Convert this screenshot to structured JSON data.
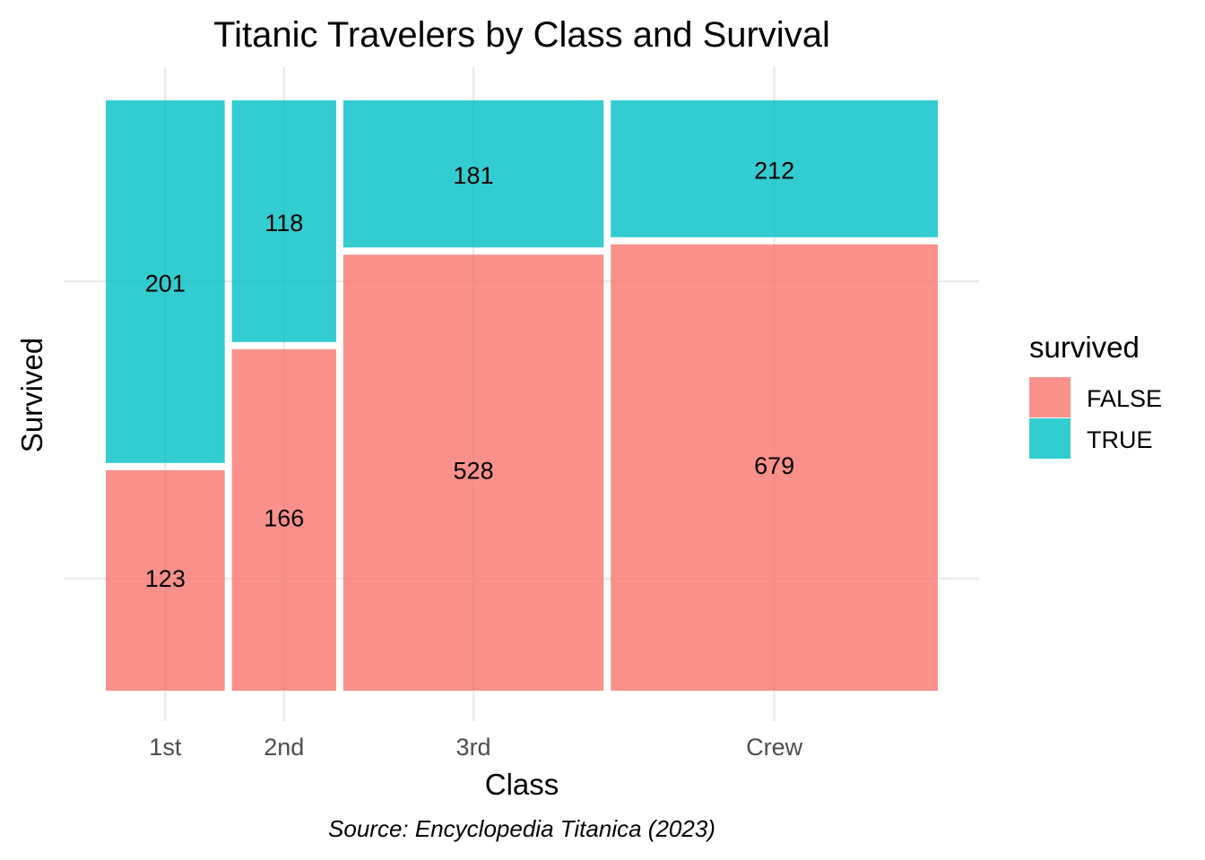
{
  "chart_data": {
    "type": "mosaic",
    "title": "Titanic Travelers by Class and Survival",
    "xlabel": "Class",
    "ylabel": "Survived",
    "caption": "Source: Encyclopedia Titanica (2023)",
    "categories": [
      "1st",
      "2nd",
      "3rd",
      "Crew"
    ],
    "series": [
      {
        "name": "FALSE",
        "values": [
          123,
          166,
          528,
          679
        ],
        "color": "#F8766D"
      },
      {
        "name": "TRUE",
        "values": [
          201,
          118,
          181,
          212
        ],
        "color": "#00BFC4"
      }
    ],
    "legend": {
      "title": "survived",
      "position": "right",
      "entries": [
        "FALSE",
        "TRUE"
      ]
    },
    "grid": true
  }
}
